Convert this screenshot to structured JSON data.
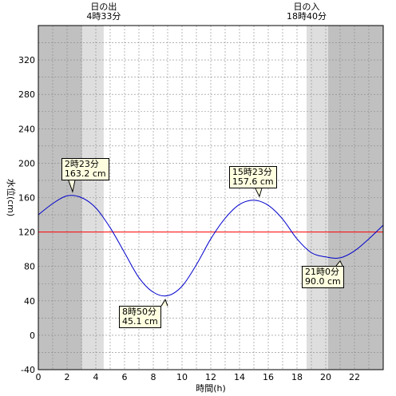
{
  "chart_data": {
    "type": "line",
    "xlabel": "時間(h)",
    "ylabel": "水位(cm)",
    "xlim": [
      0,
      24
    ],
    "ylim": [
      -40,
      360
    ],
    "xticks": [
      0,
      2,
      4,
      6,
      8,
      10,
      12,
      14,
      16,
      18,
      20,
      22
    ],
    "yticks": [
      -40,
      0,
      40,
      80,
      120,
      160,
      200,
      240,
      280,
      320
    ],
    "reference_level": 120,
    "sunrise": {
      "title": "日の出",
      "time": "4時33分",
      "hour": 4.55
    },
    "sunset": {
      "title": "日の入",
      "time": "18時40分",
      "hour": 18.667
    },
    "extremes": [
      {
        "time": "2時23分",
        "level": "163.2 cm",
        "hour": 2.383,
        "value": 163.2
      },
      {
        "time": "8時50分",
        "level": "45.1 cm",
        "hour": 8.833,
        "value": 45.1
      },
      {
        "time": "15時23分",
        "level": "157.6 cm",
        "hour": 15.383,
        "value": 157.6
      },
      {
        "time": "21時0分",
        "level": "90.0 cm",
        "hour": 21.0,
        "value": 90.0
      }
    ],
    "series": [
      {
        "x": [
          0,
          1,
          2,
          3,
          4,
          5,
          6,
          7,
          8,
          9,
          10,
          11,
          12,
          13,
          14,
          15,
          16,
          17,
          18,
          19,
          20,
          21,
          22,
          23,
          24
        ],
        "y": [
          140,
          153,
          162,
          160,
          148,
          125,
          96,
          67,
          50,
          46,
          57,
          82,
          112,
          136,
          152,
          157,
          151,
          135,
          112,
          96,
          91,
          90,
          98,
          112,
          128
        ]
      }
    ],
    "colors": {
      "tide": "#0000cc",
      "reference": "#ff0000",
      "night": "#c0c0c0",
      "twilight": "#dedede",
      "callout_bg": "#ffffe0"
    }
  }
}
